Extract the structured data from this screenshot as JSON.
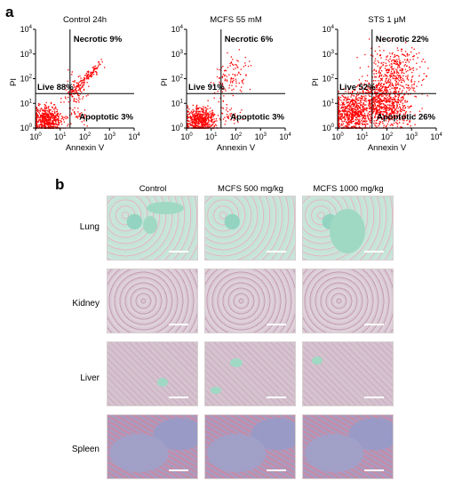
{
  "panel_a": {
    "letter": "a",
    "xlabel": "Annexin V",
    "ylabel": "PI",
    "tick_labels": [
      "0",
      "1",
      "2",
      "3",
      "4"
    ],
    "tick_base": "10",
    "point_color": "#ff0000"
  },
  "panel_b": {
    "letter": "b",
    "columns": [
      "Control",
      "MCFS 500 mg/kg",
      "MCFS 1000 mg/kg"
    ],
    "rows": [
      "Lung",
      "Kidney",
      "Liver",
      "Spleen"
    ]
  },
  "chart_data": [
    {
      "type": "scatter",
      "title": "Control 24h",
      "xlabel": "Annexin V",
      "ylabel": "PI",
      "log_scale": true,
      "xlim": [
        1,
        10000
      ],
      "ylim": [
        1,
        10000
      ],
      "gate": [
        25,
        25
      ],
      "quadrants": {
        "necrotic": "Necrotic 9%",
        "live": "Live 88%",
        "apoptotic": "Apoptotic 3%"
      }
    },
    {
      "type": "scatter",
      "title": "MCFS 55 mM",
      "xlabel": "Annexin V",
      "ylabel": "PI",
      "log_scale": true,
      "xlim": [
        1,
        10000
      ],
      "ylim": [
        1,
        10000
      ],
      "gate": [
        25,
        25
      ],
      "quadrants": {
        "necrotic": "Necrotic 6%",
        "live": "Live 91%",
        "apoptotic": "Apoptotic 3%"
      }
    },
    {
      "type": "scatter",
      "title": "STS 1 μM",
      "xlabel": "Annexin V",
      "ylabel": "PI",
      "log_scale": true,
      "xlim": [
        1,
        10000
      ],
      "ylim": [
        1,
        10000
      ],
      "gate": [
        25,
        25
      ],
      "quadrants": {
        "necrotic": "Necrotic 22%",
        "live": "Live 52%",
        "apoptotic": "Apoptotic 26%"
      }
    }
  ]
}
